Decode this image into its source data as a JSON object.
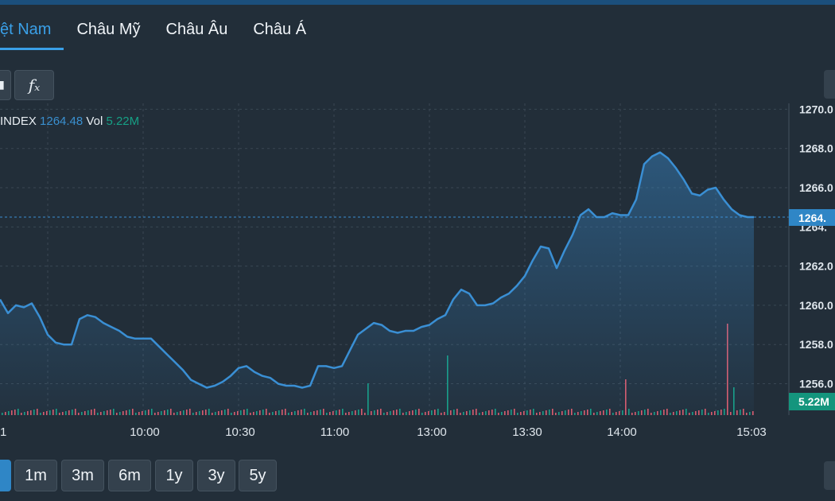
{
  "tabs": [
    {
      "label": "ệt Nam",
      "active": true
    },
    {
      "label": "Châu Mỹ",
      "active": false
    },
    {
      "label": "Châu Âu",
      "active": false
    },
    {
      "label": "Châu Á",
      "active": false
    }
  ],
  "toolbar": {
    "fx_label": "fₓ"
  },
  "legend": {
    "name": "INDEX",
    "value": "1264.48",
    "vol_label": "Vol",
    "vol_value": "5.22M"
  },
  "ranges": [
    {
      "label": "",
      "active": true
    },
    {
      "label": "1m",
      "active": false
    },
    {
      "label": "3m",
      "active": false
    },
    {
      "label": "6m",
      "active": false
    },
    {
      "label": "1y",
      "active": false
    },
    {
      "label": "3y",
      "active": false
    },
    {
      "label": "5y",
      "active": false
    }
  ],
  "colors": {
    "line": "#3a8fd4",
    "up": "#16a085",
    "down": "#e05a6a",
    "price_tag": "#2f86c6",
    "vol_tag": "#14957d",
    "bg": "#222e39"
  },
  "chart_data": {
    "type": "area",
    "x_ticks": [
      "1",
      "10:00",
      "10:30",
      "11:00",
      "13:00",
      "13:30",
      "14:00",
      "15:03"
    ],
    "y_ticks": [
      1256,
      1258,
      1260,
      1262,
      1264,
      1266,
      1268,
      1270
    ],
    "y_tick_labels": [
      "1256.0",
      "1258.0",
      "1260.0",
      "1262.0",
      "1264.",
      "1266.0",
      "1268.0",
      "1270.0"
    ],
    "ylim": [
      1254.4,
      1270.3
    ],
    "last_price": "1264.",
    "last_volume": "5.22M",
    "series": [
      {
        "x": [
          0,
          10,
          20,
          30,
          40,
          50,
          60,
          70,
          80,
          90,
          100,
          110,
          120,
          130,
          140,
          150,
          160,
          170,
          180,
          190,
          200,
          210,
          220,
          230,
          240,
          250,
          260,
          270,
          280,
          290,
          300,
          310,
          320,
          330,
          340,
          350,
          360,
          370,
          380,
          390,
          400,
          410,
          420,
          430,
          440,
          450,
          460,
          470,
          480,
          490,
          500,
          510,
          520,
          530,
          540,
          550,
          560,
          570,
          580,
          590,
          600,
          610,
          620,
          630,
          640,
          650,
          660,
          670,
          680,
          690,
          700,
          710,
          720,
          730,
          740,
          750,
          760,
          770,
          780,
          790,
          800,
          810,
          820,
          830,
          840,
          850,
          860,
          870,
          880,
          890,
          900,
          910,
          920,
          930,
          940,
          948
        ],
        "values": [
          1260.3,
          1259.6,
          1260.0,
          1259.9,
          1260.1,
          1259.4,
          1258.5,
          1258.1,
          1258.0,
          1258.0,
          1259.3,
          1259.5,
          1259.4,
          1259.1,
          1258.9,
          1258.7,
          1258.4,
          1258.3,
          1258.3,
          1258.3,
          1257.9,
          1257.5,
          1257.1,
          1256.7,
          1256.2,
          1256.0,
          1255.8,
          1255.9,
          1256.1,
          1256.4,
          1256.8,
          1256.9,
          1256.6,
          1256.4,
          1256.3,
          1256.0,
          1255.9,
          1255.9,
          1255.8,
          1255.9,
          1256.9,
          1256.9,
          1256.8,
          1256.9,
          1257.7,
          1258.5,
          1258.8,
          1259.1,
          1259.0,
          1258.7,
          1258.6,
          1258.7,
          1258.7,
          1258.9,
          1259.0,
          1259.3,
          1259.5,
          1260.3,
          1260.8,
          1260.6,
          1260.0,
          1260.0,
          1260.1,
          1260.4,
          1260.6,
          1261.0,
          1261.5,
          1262.3,
          1263.0,
          1262.9,
          1261.9,
          1262.8,
          1263.6,
          1264.6,
          1264.9,
          1264.5,
          1264.5,
          1264.7,
          1264.6,
          1264.6,
          1265.4,
          1267.2,
          1267.6,
          1267.8,
          1267.5,
          1267.0,
          1266.4,
          1265.7,
          1265.6,
          1265.9,
          1266.0,
          1265.4,
          1264.9,
          1264.6,
          1264.5,
          1264.5
        ]
      }
    ]
  }
}
